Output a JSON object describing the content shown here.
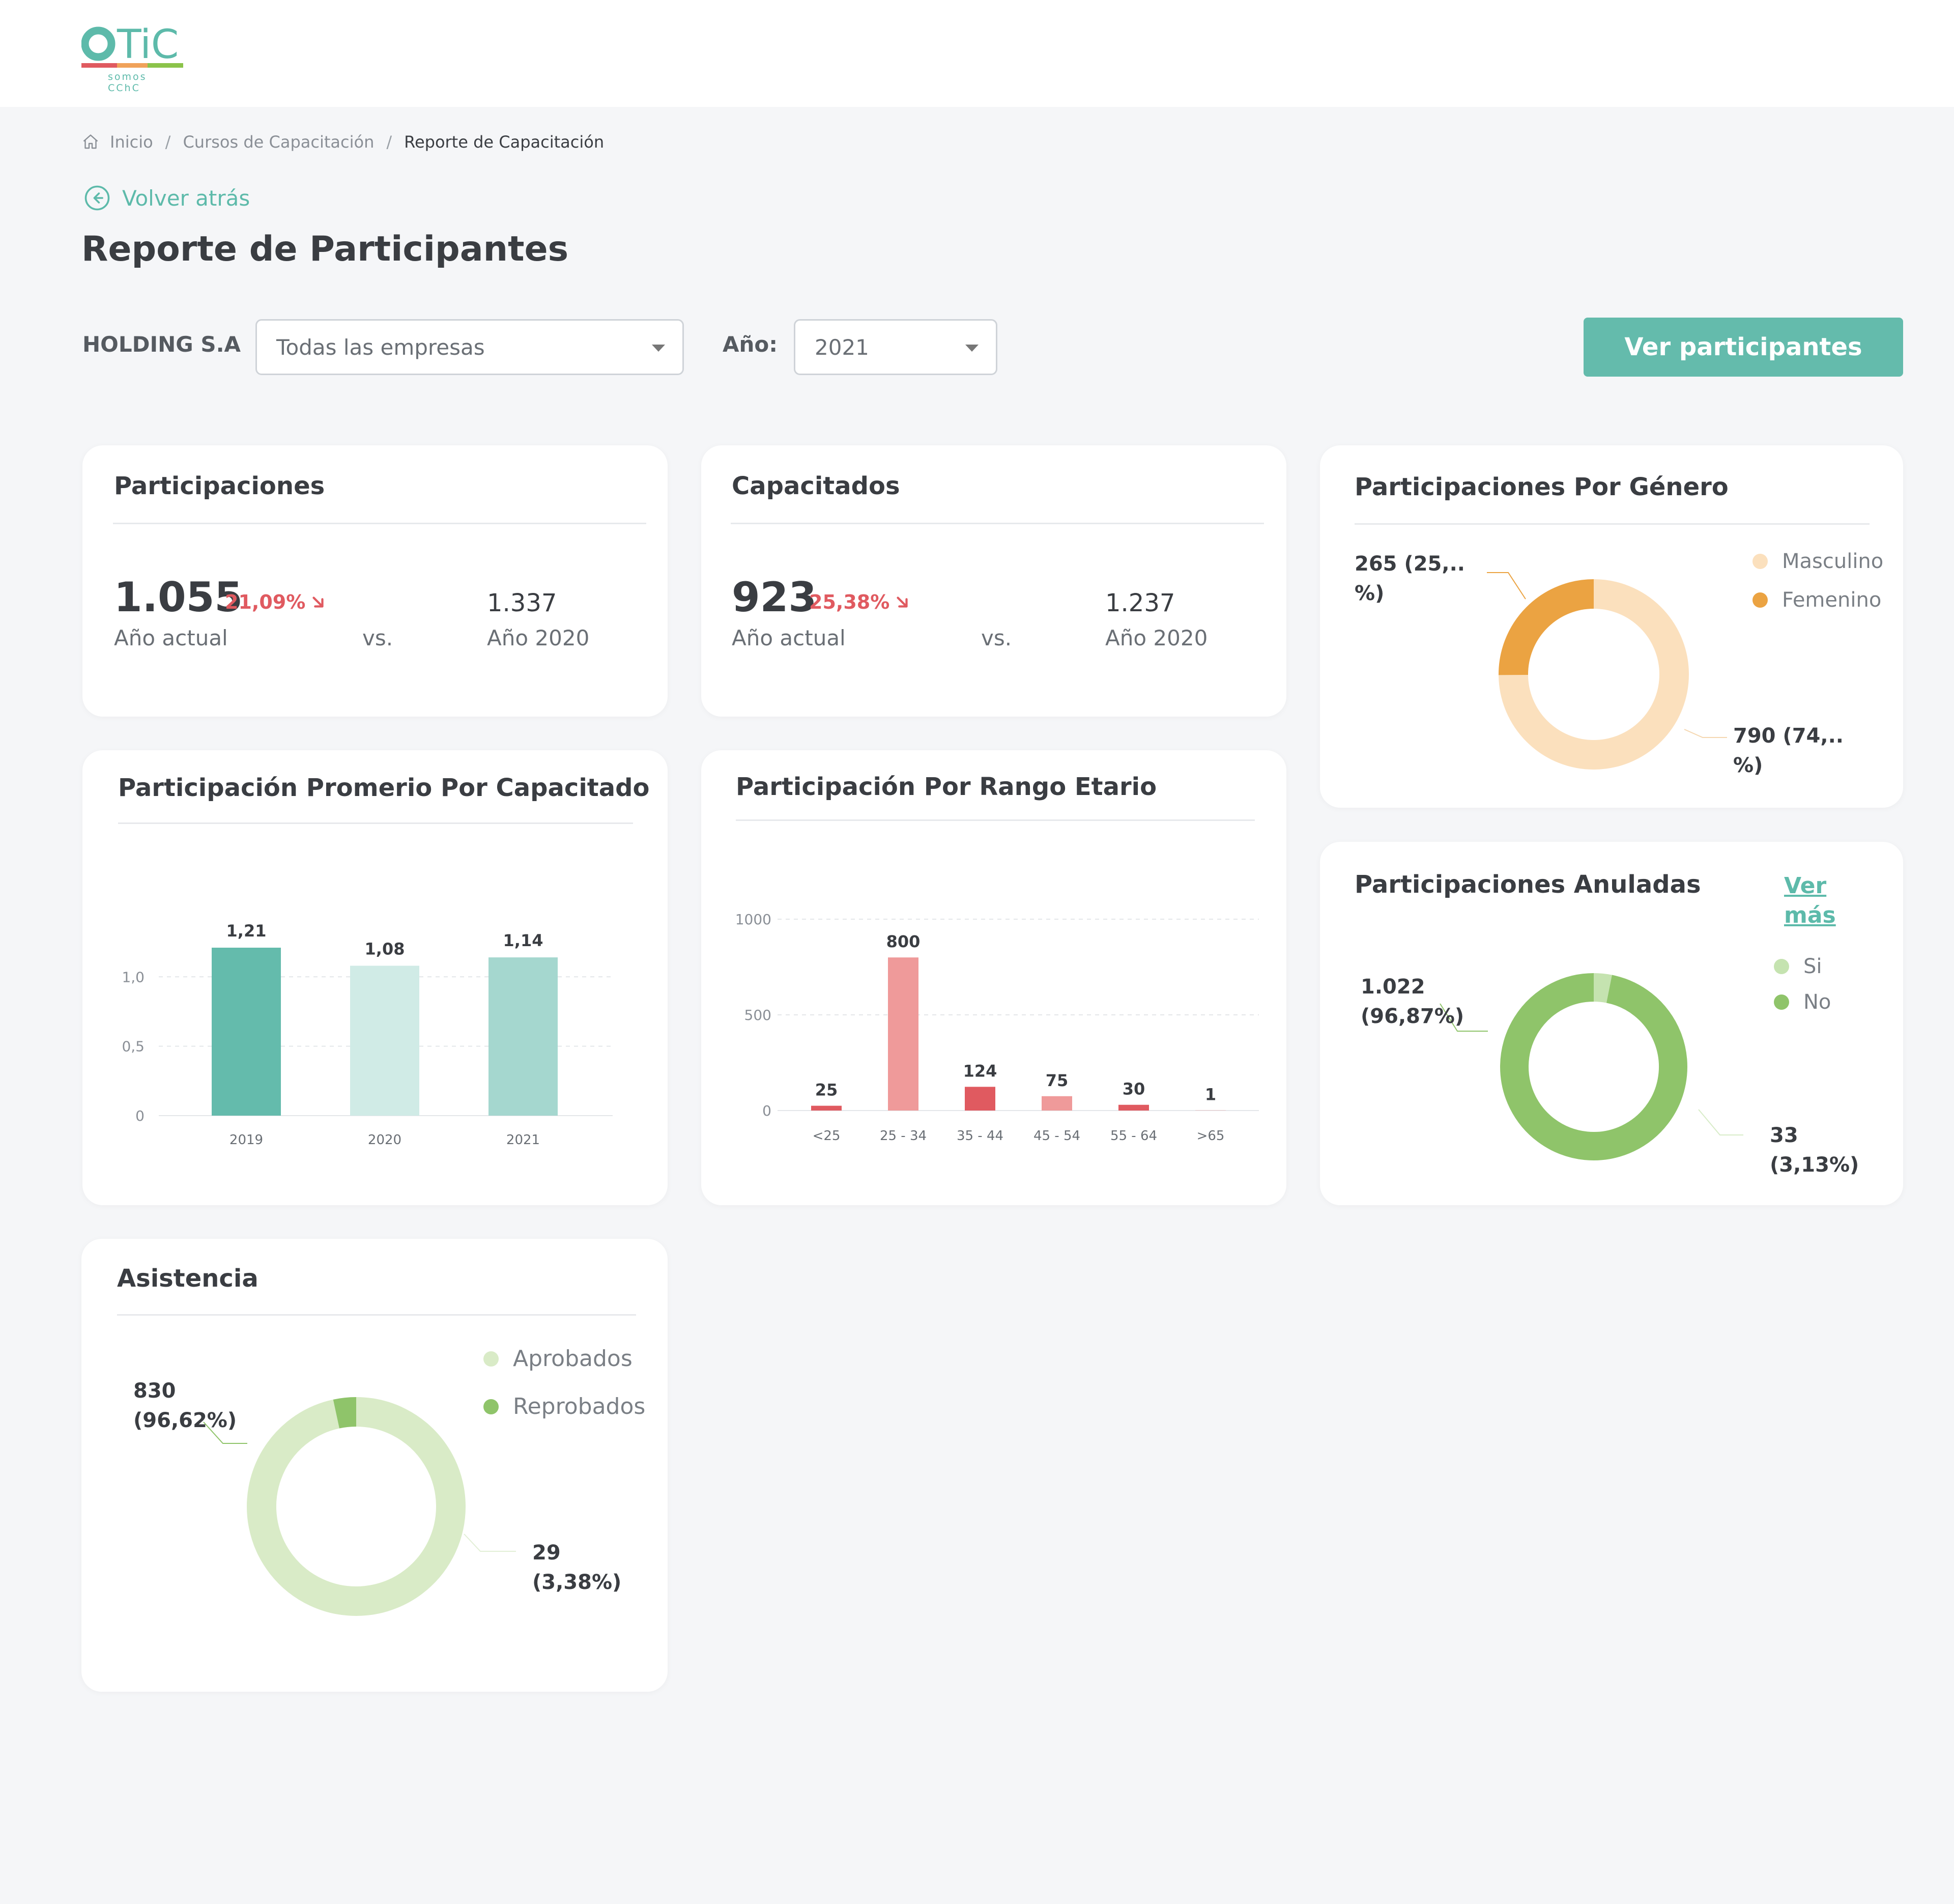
{
  "header": {
    "logo_text": "OTIC",
    "logo_tagline": "somos CChC",
    "colors": {
      "brand": "#5dbaaa",
      "bar_red": "#e05a60",
      "bar_orange": "#f0a25a",
      "bar_green": "#8bc34a"
    }
  },
  "breadcrumb": {
    "home_icon": "home-icon",
    "items": [
      "Inicio",
      "Cursos de Capacitación",
      "Reporte de Capacitación"
    ],
    "separator": "/"
  },
  "back": {
    "icon": "arrow-left-circle-icon",
    "label": "Volver atrás"
  },
  "page": {
    "title": "Reporte de Participantes"
  },
  "filters": {
    "company_label": "HOLDING S.A",
    "company_select": {
      "value": "Todas las empresas"
    },
    "year_label": "Año:",
    "year_select": {
      "value": "2021"
    },
    "action_button": "Ver participantes"
  },
  "cards": {
    "participaciones": {
      "title": "Participaciones",
      "current": "1.055",
      "change": "21,09%",
      "change_icon": "arrow-down-right-icon",
      "current_caption": "Año actual",
      "vs": "vs.",
      "previous": "1.337",
      "previous_caption": "Año 2020"
    },
    "capacitados": {
      "title": "Capacitados",
      "current": "923",
      "change": "25,38%",
      "change_icon": "arrow-down-right-icon",
      "current_caption": "Año actual",
      "vs": "vs.",
      "previous": "1.237",
      "previous_caption": "Año 2020"
    },
    "genero": {
      "title": "Participaciones Por Género",
      "label_small_1": "265 (25,..",
      "label_small_2": "%)",
      "label_large_1": "790 (74,..",
      "label_large_2": "%)",
      "legend": [
        {
          "label": "Masculino",
          "color": "#fbe0bd"
        },
        {
          "label": "Femenino",
          "color": "#eba342"
        }
      ]
    },
    "promedio": {
      "title": "Participación Promerio Por Capacitado"
    },
    "rango": {
      "title": "Participación Por Rango Etario"
    },
    "anuladas": {
      "title": "Participaciones Anuladas",
      "link_1": "Ver",
      "link_2": "más",
      "label_large_1": "1.022",
      "label_large_2": "(96,87%)",
      "label_small_1": "33",
      "label_small_2": "(3,13%)",
      "legend": [
        {
          "label": "Si",
          "color": "#c5e3b0"
        },
        {
          "label": "No",
          "color": "#8fc46a"
        }
      ]
    },
    "asistencia": {
      "title": "Asistencia",
      "label_large_1": "830",
      "label_large_2": "(96,62%)",
      "label_small_1": "29",
      "label_small_2": "(3,38%)",
      "legend": [
        {
          "label": "Aprobados",
          "color": "#d9ebc7"
        },
        {
          "label": "Reprobados",
          "color": "#8fc46a"
        }
      ]
    }
  },
  "chart_data": [
    {
      "type": "bar",
      "title": "Participación Promerio Por Capacitado",
      "categories": [
        "2019",
        "2020",
        "2021"
      ],
      "values": [
        1.21,
        1.08,
        1.14
      ],
      "value_labels": [
        "1,21",
        "1,08",
        "1,14"
      ],
      "colors": [
        "#64bbac",
        "#d0ebe6",
        "#a5d7cf"
      ],
      "yticks": [
        "0",
        "0,5",
        "1,0"
      ],
      "ytick_values": [
        0,
        0.5,
        1.0
      ],
      "ylim": [
        0,
        1.32
      ],
      "grid": true
    },
    {
      "type": "bar",
      "title": "Participación Por Rango Etario",
      "categories": [
        "<25",
        "25 - 34",
        "35 - 44",
        "45 - 54",
        "55 - 64",
        ">65"
      ],
      "values": [
        25,
        800,
        124,
        75,
        30,
        1
      ],
      "value_labels": [
        "25",
        "800",
        "124",
        "75",
        "30",
        "1"
      ],
      "colors": [
        "#e05a60",
        "#ef9a9a",
        "#e05a60",
        "#ef9a9a",
        "#e05a60",
        "#ef9a9a"
      ],
      "yticks": [
        "0",
        "500",
        "1000"
      ],
      "ytick_values": [
        0,
        500,
        1000
      ],
      "ylim": [
        0,
        1000
      ],
      "grid": true
    },
    {
      "type": "pie",
      "title": "Participaciones Por Género",
      "labels": [
        "Masculino",
        "Femenino"
      ],
      "values": [
        790,
        265
      ],
      "colors": [
        "#fbe0bd",
        "#eba342"
      ]
    },
    {
      "type": "pie",
      "title": "Participaciones Anuladas",
      "labels": [
        "Si",
        "No"
      ],
      "values": [
        33,
        1022
      ],
      "colors": [
        "#c5e3b0",
        "#8fc46a"
      ]
    },
    {
      "type": "pie",
      "title": "Asistencia",
      "labels": [
        "Aprobados",
        "Reprobados"
      ],
      "values": [
        830,
        29
      ],
      "colors": [
        "#d9ebc7",
        "#8fc46a"
      ]
    }
  ]
}
